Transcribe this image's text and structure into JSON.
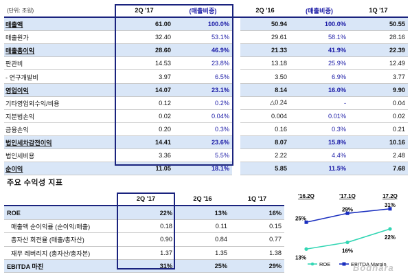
{
  "financial": {
    "unit_label": "(단위: 조원)",
    "headers": [
      "2Q '17",
      "(매출비중)",
      "2Q '16",
      "(매출비중)",
      "1Q '17"
    ],
    "rows": [
      {
        "label": "매출액",
        "c1": "61.00",
        "p1": "100.0%",
        "c2": "50.94",
        "p2": "100.0%",
        "c3": "50.55"
      },
      {
        "label": "매출원가",
        "c1": "32.40",
        "p1": "53.1%",
        "c2": "29.61",
        "p2": "58.1%",
        "c3": "28.16"
      },
      {
        "label": "매출총이익",
        "c1": "28.60",
        "p1": "46.9%",
        "c2": "21.33",
        "p2": "41.9%",
        "c3": "22.39"
      },
      {
        "label": "판관비",
        "c1": "14.53",
        "p1": "23.8%",
        "c2": "13.18",
        "p2": "25.9%",
        "c3": "12.49"
      },
      {
        "label": "- 연구개발비",
        "c1": "3.97",
        "p1": "6.5%",
        "c2": "3.50",
        "p2": "6.9%",
        "c3": "3.77"
      },
      {
        "label": "영업이익",
        "c1": "14.07",
        "p1": "23.1%",
        "c2": "8.14",
        "p2": "16.0%",
        "c3": "9.90"
      },
      {
        "label": "기타영업외수익/비용",
        "c1": "0.12",
        "p1": "0.2%",
        "c2": "△0.24",
        "p2": "-",
        "c3": "0.04"
      },
      {
        "label": "지분법손익",
        "c1": "0.02",
        "p1": "0.04%",
        "c2": "0.004",
        "p2": "0.01%",
        "c3": "0.02"
      },
      {
        "label": "금융손익",
        "c1": "0.20",
        "p1": "0.3%",
        "c2": "0.16",
        "p2": "0.3%",
        "c3": "0.21"
      },
      {
        "label": "법인세차감전이익",
        "c1": "14.41",
        "p1": "23.6%",
        "c2": "8.07",
        "p2": "15.8%",
        "c3": "10.16"
      },
      {
        "label": "법인세비용",
        "c1": "3.36",
        "p1": "5.5%",
        "c2": "2.22",
        "p2": "4.4%",
        "c3": "2.48"
      },
      {
        "label": "순이익",
        "c1": "11.05",
        "p1": "18.1%",
        "c2": "5.85",
        "p2": "11.5%",
        "c3": "7.68"
      }
    ]
  },
  "profitability": {
    "title": "주요 수익성 지표",
    "headers": [
      "2Q '17",
      "2Q '16",
      "1Q '17"
    ],
    "rows": [
      {
        "label": "ROE",
        "c1": "22%",
        "c2": "13%",
        "c3": "16%"
      },
      {
        "label": "매출액 순이익률 (순이익/매출)",
        "c1": "0.18",
        "c2": "0.11",
        "c3": "0.15"
      },
      {
        "label": "총자산 회전율 (매출/총자산)",
        "c1": "0.90",
        "c2": "0.84",
        "c3": "0.77"
      },
      {
        "label": "재무 레버리지 (총자산/총자본)",
        "c1": "1.37",
        "c2": "1.35",
        "c3": "1.38"
      },
      {
        "label": "EBITDA 마진",
        "c1": "31%",
        "c2": "25%",
        "c3": "29%"
      }
    ]
  },
  "chart_data": {
    "type": "line",
    "categories": [
      "'16.2Q",
      "'17.1Q",
      "17.2Q"
    ],
    "series": [
      {
        "name": "ROE",
        "values": [
          13,
          16,
          22
        ],
        "color": "#33d6b4"
      },
      {
        "name": "EBITDA Margin",
        "values": [
          25,
          29,
          31
        ],
        "color": "#1a2fbf"
      }
    ],
    "data_labels": {
      "ROE": [
        "13%",
        "16%",
        "22%"
      ],
      "EBITDA Margin": [
        "25%",
        "29%",
        "31%"
      ]
    }
  },
  "watermark": "Bodnara"
}
